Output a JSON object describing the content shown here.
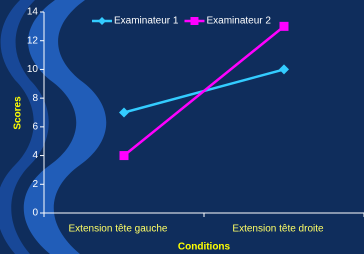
{
  "chart_data": {
    "type": "line",
    "categories": [
      "Extension tête gauche",
      "Extension tête droite"
    ],
    "series": [
      {
        "name": "Examinateur 1",
        "color": "#33ccff",
        "marker": "diamond",
        "values": [
          7,
          10
        ]
      },
      {
        "name": "Examinateur 2",
        "color": "#ff00ff",
        "marker": "square",
        "values": [
          4,
          13
        ]
      }
    ],
    "xlabel": "Conditions",
    "ylabel": "Scores",
    "ylim": [
      0,
      14
    ],
    "yticks": [
      0,
      2,
      4,
      6,
      8,
      10,
      12,
      14
    ],
    "legend": "top"
  }
}
